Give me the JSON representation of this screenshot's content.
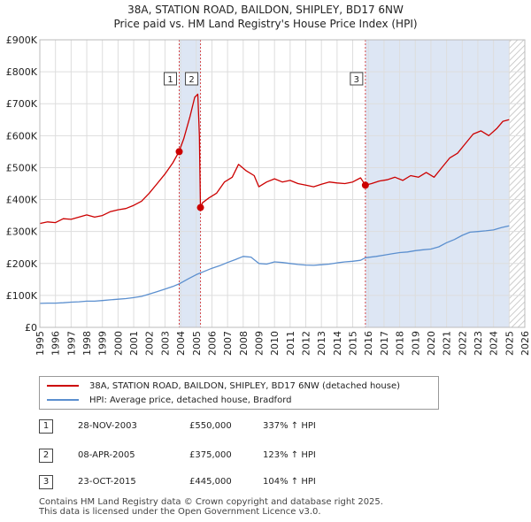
{
  "title": {
    "line1": "38A, STATION ROAD, BAILDON, SHIPLEY, BD17 6NW",
    "line2": "Price paid vs. HM Land Registry's House Price Index (HPI)"
  },
  "colors": {
    "property": "#cc0000",
    "hpi": "#5b8fcf",
    "shade": "#dde6f4",
    "hatch": "#c8c8c8",
    "grid": "#dddddd",
    "marker_line": "#cc0000"
  },
  "chart_data": {
    "type": "line",
    "title": "Price paid vs. HM Land Registry's House Price Index (HPI)",
    "xlabel": "",
    "ylabel": "",
    "xlim": [
      1995,
      2026
    ],
    "ylim": [
      0,
      900000
    ],
    "y_ticks": [
      0,
      100000,
      200000,
      300000,
      400000,
      500000,
      600000,
      700000,
      800000,
      900000
    ],
    "y_tick_labels": [
      "£0",
      "£100K",
      "£200K",
      "£300K",
      "£400K",
      "£500K",
      "£600K",
      "£700K",
      "£800K",
      "£900K"
    ],
    "x_ticks": [
      1995,
      1996,
      1997,
      1998,
      1999,
      2000,
      2001,
      2002,
      2003,
      2004,
      2005,
      2006,
      2007,
      2008,
      2009,
      2010,
      2011,
      2012,
      2013,
      2014,
      2015,
      2016,
      2017,
      2018,
      2019,
      2020,
      2021,
      2022,
      2023,
      2024,
      2025,
      2026
    ],
    "x_tick_labels": [
      "1995",
      "1996",
      "1997",
      "1998",
      "1999",
      "2000",
      "2001",
      "2002",
      "2003",
      "2004",
      "2005",
      "2006",
      "2007",
      "2008",
      "2009",
      "2010",
      "2011",
      "2012",
      "2013",
      "2014",
      "2015",
      "2016",
      "2017",
      "2018",
      "2019",
      "2020",
      "2021",
      "2022",
      "2023",
      "2024",
      "2025",
      "2026"
    ],
    "series": [
      {
        "name": "38A, STATION ROAD, BAILDON, SHIPLEY, BD17 6NW (detached house)",
        "color": "#cc0000",
        "points": [
          [
            1995.0,
            325000
          ],
          [
            1995.5,
            330000
          ],
          [
            1996.0,
            328000
          ],
          [
            1996.5,
            340000
          ],
          [
            1997.0,
            338000
          ],
          [
            1997.5,
            345000
          ],
          [
            1998.0,
            352000
          ],
          [
            1998.5,
            345000
          ],
          [
            1999.0,
            350000
          ],
          [
            1999.5,
            362000
          ],
          [
            2000.0,
            368000
          ],
          [
            2000.5,
            372000
          ],
          [
            2001.0,
            382000
          ],
          [
            2001.5,
            395000
          ],
          [
            2002.0,
            420000
          ],
          [
            2002.5,
            450000
          ],
          [
            2003.0,
            480000
          ],
          [
            2003.5,
            515000
          ],
          [
            2003.9,
            550000
          ],
          [
            2004.2,
            590000
          ],
          [
            2004.6,
            660000
          ],
          [
            2004.9,
            720000
          ],
          [
            2005.1,
            730000
          ],
          [
            2005.2,
            600000
          ],
          [
            2005.27,
            375000
          ],
          [
            2005.4,
            390000
          ],
          [
            2005.8,
            405000
          ],
          [
            2006.3,
            420000
          ],
          [
            2006.8,
            455000
          ],
          [
            2007.3,
            470000
          ],
          [
            2007.7,
            510000
          ],
          [
            2008.2,
            490000
          ],
          [
            2008.7,
            475000
          ],
          [
            2009.0,
            440000
          ],
          [
            2009.5,
            455000
          ],
          [
            2010.0,
            465000
          ],
          [
            2010.5,
            455000
          ],
          [
            2011.0,
            460000
          ],
          [
            2011.5,
            450000
          ],
          [
            2012.0,
            445000
          ],
          [
            2012.5,
            440000
          ],
          [
            2013.0,
            448000
          ],
          [
            2013.5,
            455000
          ],
          [
            2014.0,
            452000
          ],
          [
            2014.5,
            450000
          ],
          [
            2015.0,
            455000
          ],
          [
            2015.5,
            468000
          ],
          [
            2015.81,
            445000
          ],
          [
            2016.2,
            450000
          ],
          [
            2016.7,
            458000
          ],
          [
            2017.2,
            462000
          ],
          [
            2017.7,
            470000
          ],
          [
            2018.2,
            460000
          ],
          [
            2018.7,
            475000
          ],
          [
            2019.2,
            470000
          ],
          [
            2019.7,
            485000
          ],
          [
            2020.2,
            470000
          ],
          [
            2020.7,
            500000
          ],
          [
            2021.2,
            530000
          ],
          [
            2021.7,
            545000
          ],
          [
            2022.2,
            575000
          ],
          [
            2022.7,
            605000
          ],
          [
            2023.2,
            615000
          ],
          [
            2023.7,
            600000
          ],
          [
            2024.2,
            622000
          ],
          [
            2024.6,
            645000
          ],
          [
            2025.0,
            650000
          ]
        ]
      },
      {
        "name": "HPI: Average price, detached house, Bradford",
        "color": "#5b8fcf",
        "points": [
          [
            1995.0,
            75000
          ],
          [
            1995.5,
            76000
          ],
          [
            1996.0,
            76000
          ],
          [
            1996.5,
            77000
          ],
          [
            1997.0,
            79000
          ],
          [
            1997.5,
            80000
          ],
          [
            1998.0,
            82000
          ],
          [
            1998.5,
            82000
          ],
          [
            1999.0,
            84000
          ],
          [
            1999.5,
            86000
          ],
          [
            2000.0,
            88000
          ],
          [
            2000.5,
            90000
          ],
          [
            2001.0,
            93000
          ],
          [
            2001.5,
            97000
          ],
          [
            2002.0,
            104000
          ],
          [
            2002.5,
            112000
          ],
          [
            2003.0,
            120000
          ],
          [
            2003.5,
            128000
          ],
          [
            2003.9,
            136000
          ],
          [
            2004.5,
            152000
          ],
          [
            2005.0,
            165000
          ],
          [
            2005.5,
            175000
          ],
          [
            2006.0,
            185000
          ],
          [
            2006.5,
            193000
          ],
          [
            2007.0,
            203000
          ],
          [
            2007.5,
            212000
          ],
          [
            2008.0,
            222000
          ],
          [
            2008.5,
            220000
          ],
          [
            2009.0,
            200000
          ],
          [
            2009.5,
            198000
          ],
          [
            2010.0,
            205000
          ],
          [
            2010.5,
            203000
          ],
          [
            2011.0,
            200000
          ],
          [
            2011.5,
            197000
          ],
          [
            2012.0,
            195000
          ],
          [
            2012.5,
            194000
          ],
          [
            2013.0,
            196000
          ],
          [
            2013.5,
            198000
          ],
          [
            2014.0,
            202000
          ],
          [
            2014.5,
            205000
          ],
          [
            2015.0,
            207000
          ],
          [
            2015.5,
            210000
          ],
          [
            2015.81,
            218000
          ],
          [
            2016.5,
            222000
          ],
          [
            2017.0,
            226000
          ],
          [
            2017.5,
            230000
          ],
          [
            2018.0,
            234000
          ],
          [
            2018.5,
            236000
          ],
          [
            2019.0,
            240000
          ],
          [
            2019.5,
            243000
          ],
          [
            2020.0,
            245000
          ],
          [
            2020.5,
            252000
          ],
          [
            2021.0,
            265000
          ],
          [
            2021.5,
            275000
          ],
          [
            2022.0,
            288000
          ],
          [
            2022.5,
            298000
          ],
          [
            2023.0,
            300000
          ],
          [
            2023.5,
            302000
          ],
          [
            2024.0,
            305000
          ],
          [
            2024.5,
            312000
          ],
          [
            2025.0,
            318000
          ]
        ]
      }
    ],
    "sales": [
      {
        "num": "1",
        "x": 2003.91,
        "price": 550000,
        "date": "28-NOV-2003",
        "price_label": "£550,000",
        "hpi_label": "337% ↑ HPI"
      },
      {
        "num": "2",
        "x": 2005.27,
        "price": 375000,
        "date": "08-APR-2005",
        "price_label": "£375,000",
        "hpi_label": "123% ↑ HPI"
      },
      {
        "num": "3",
        "x": 2015.81,
        "price": 445000,
        "date": "23-OCT-2015",
        "price_label": "£445,000",
        "hpi_label": "104% ↑ HPI"
      }
    ],
    "shaded_ranges": [
      [
        2003.91,
        2005.27
      ],
      [
        2015.81,
        2025.0
      ]
    ],
    "hatched_range": [
      2025.0,
      2026.0
    ]
  },
  "legend": {
    "entry1": "38A, STATION ROAD, BAILDON, SHIPLEY, BD17 6NW (detached house)",
    "entry2": "HPI: Average price, detached house, Bradford"
  },
  "footer": {
    "line1": "Contains HM Land Registry data © Crown copyright and database right 2025.",
    "line2": "This data is licensed under the Open Government Licence v3.0."
  }
}
